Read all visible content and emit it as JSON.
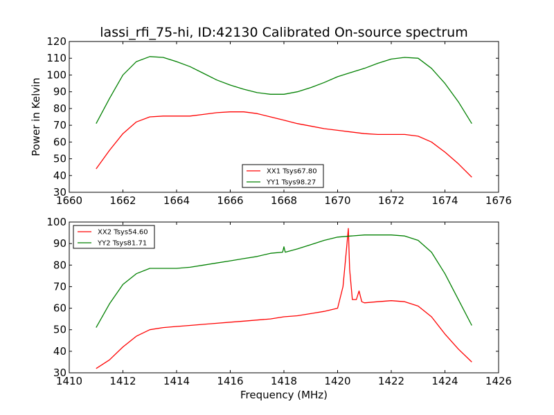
{
  "chart_data": [
    {
      "type": "line",
      "title": "lassi_rfi_75-hi, ID:42130 Calibrated On-source spectrum",
      "ylabel": "Power in Kelvin",
      "xlabel": "",
      "xlim": [
        1660,
        1676
      ],
      "ylim": [
        30,
        120
      ],
      "xticks": [
        1660,
        1662,
        1664,
        1666,
        1668,
        1670,
        1672,
        1674,
        1676
      ],
      "yticks": [
        30,
        40,
        50,
        60,
        70,
        80,
        90,
        100,
        110,
        120
      ],
      "legend_position": "lower-center",
      "series": [
        {
          "name": "XX1 Tsys67.80",
          "color": "#ff0000",
          "x": [
            1661.0,
            1661.5,
            1662.0,
            1662.5,
            1663.0,
            1663.5,
            1664.0,
            1664.5,
            1665.0,
            1665.5,
            1666.0,
            1666.5,
            1667.0,
            1667.5,
            1668.0,
            1668.5,
            1669.0,
            1669.5,
            1670.0,
            1670.5,
            1671.0,
            1671.5,
            1672.0,
            1672.5,
            1673.0,
            1673.5,
            1674.0,
            1674.5,
            1675.0
          ],
          "y": [
            44,
            55,
            65,
            72,
            75,
            75.5,
            75.5,
            75.5,
            76.5,
            77.5,
            78,
            78,
            77,
            75,
            73,
            71,
            69.5,
            68,
            67,
            66,
            65,
            64.5,
            64.5,
            64.5,
            63.5,
            60,
            54,
            47,
            39
          ]
        },
        {
          "name": "YY1 Tsys98.27",
          "color": "#008000",
          "x": [
            1661.0,
            1661.5,
            1662.0,
            1662.5,
            1663.0,
            1663.5,
            1664.0,
            1664.5,
            1665.0,
            1665.5,
            1666.0,
            1666.5,
            1667.0,
            1667.5,
            1668.0,
            1668.5,
            1669.0,
            1669.5,
            1670.0,
            1670.5,
            1671.0,
            1671.5,
            1672.0,
            1672.5,
            1673.0,
            1673.5,
            1674.0,
            1674.5,
            1675.0
          ],
          "y": [
            71,
            86,
            100,
            108,
            111,
            110.5,
            108,
            105,
            101,
            97,
            94,
            91.5,
            89.5,
            88.5,
            88.5,
            90,
            92.5,
            95.5,
            99,
            101.5,
            104,
            107,
            109.5,
            110.5,
            110,
            104,
            95,
            84,
            71
          ]
        }
      ]
    },
    {
      "type": "line",
      "title": "",
      "ylabel": "",
      "xlabel": "Frequency (MHz)",
      "xlim": [
        1410,
        1426
      ],
      "ylim": [
        30,
        100
      ],
      "xticks": [
        1410,
        1412,
        1414,
        1416,
        1418,
        1420,
        1422,
        1424,
        1426
      ],
      "yticks": [
        30,
        40,
        50,
        60,
        70,
        80,
        90,
        100
      ],
      "legend_position": "upper-left",
      "series": [
        {
          "name": "XX2 Tsys54.60",
          "color": "#ff0000",
          "x": [
            1411.0,
            1411.5,
            1412.0,
            1412.5,
            1413.0,
            1413.5,
            1414.0,
            1414.5,
            1415.0,
            1415.5,
            1416.0,
            1416.5,
            1417.0,
            1417.5,
            1418.0,
            1418.5,
            1419.0,
            1419.5,
            1420.0,
            1420.2,
            1420.35,
            1420.4,
            1420.45,
            1420.55,
            1420.7,
            1420.8,
            1420.9,
            1421.0,
            1421.5,
            1422.0,
            1422.5,
            1423.0,
            1423.5,
            1424.0,
            1424.5,
            1425.0
          ],
          "y": [
            32,
            36,
            42,
            47,
            50,
            51,
            51.5,
            52,
            52.5,
            53,
            53.5,
            54,
            54.5,
            55,
            56,
            56.5,
            57.5,
            58.5,
            60,
            70,
            90,
            97,
            78,
            64,
            64,
            68,
            63,
            62.5,
            63,
            63.5,
            63,
            61,
            56,
            48,
            41,
            35
          ]
        },
        {
          "name": "YY2 Tsys81.71",
          "color": "#008000",
          "x": [
            1411.0,
            1411.5,
            1412.0,
            1412.5,
            1413.0,
            1413.5,
            1414.0,
            1414.5,
            1415.0,
            1415.5,
            1416.0,
            1416.5,
            1417.0,
            1417.5,
            1417.95,
            1418.0,
            1418.05,
            1418.5,
            1419.0,
            1419.5,
            1420.0,
            1420.5,
            1421.0,
            1421.5,
            1422.0,
            1422.5,
            1423.0,
            1423.5,
            1424.0,
            1424.5,
            1425.0
          ],
          "y": [
            51,
            62,
            71,
            76,
            78.5,
            78.5,
            78.5,
            79,
            80,
            81,
            82,
            83,
            84,
            85.5,
            86,
            88.5,
            86,
            87.5,
            89.5,
            91.5,
            93,
            93.5,
            94,
            94,
            94,
            93.5,
            91.5,
            86,
            76,
            64,
            52
          ]
        }
      ]
    }
  ]
}
